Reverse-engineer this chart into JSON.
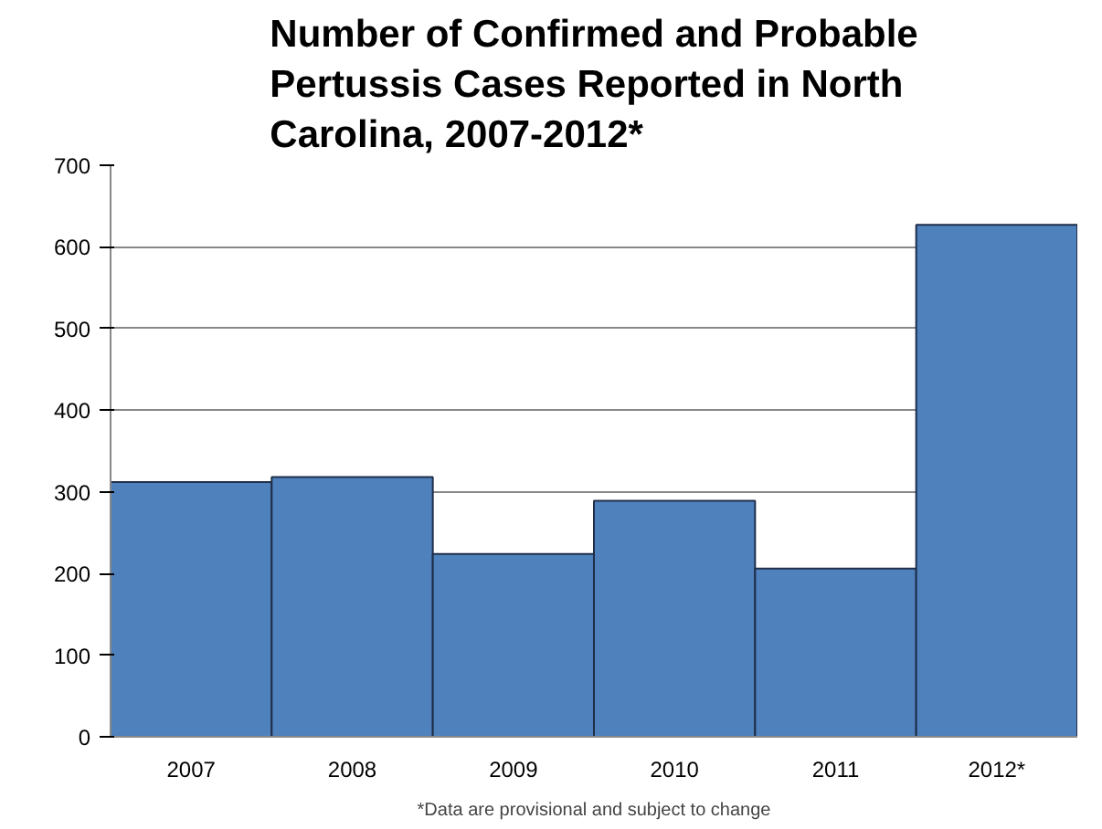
{
  "chart_data": {
    "type": "bar",
    "title": "Number of Confirmed and Probable Pertussis Cases Reported in North Carolina, 2007-2012*",
    "categories": [
      "2007",
      "2008",
      "2009",
      "2010",
      "2011",
      "2012*"
    ],
    "values": [
      312,
      318,
      224,
      289,
      206,
      627
    ],
    "color": "#4f81bd",
    "ylim": [
      0,
      700
    ],
    "yticks": [
      0,
      100,
      200,
      300,
      400,
      500,
      600,
      700
    ],
    "grid": "y",
    "annotations": [
      "*Data are provisional and subject to change"
    ]
  }
}
